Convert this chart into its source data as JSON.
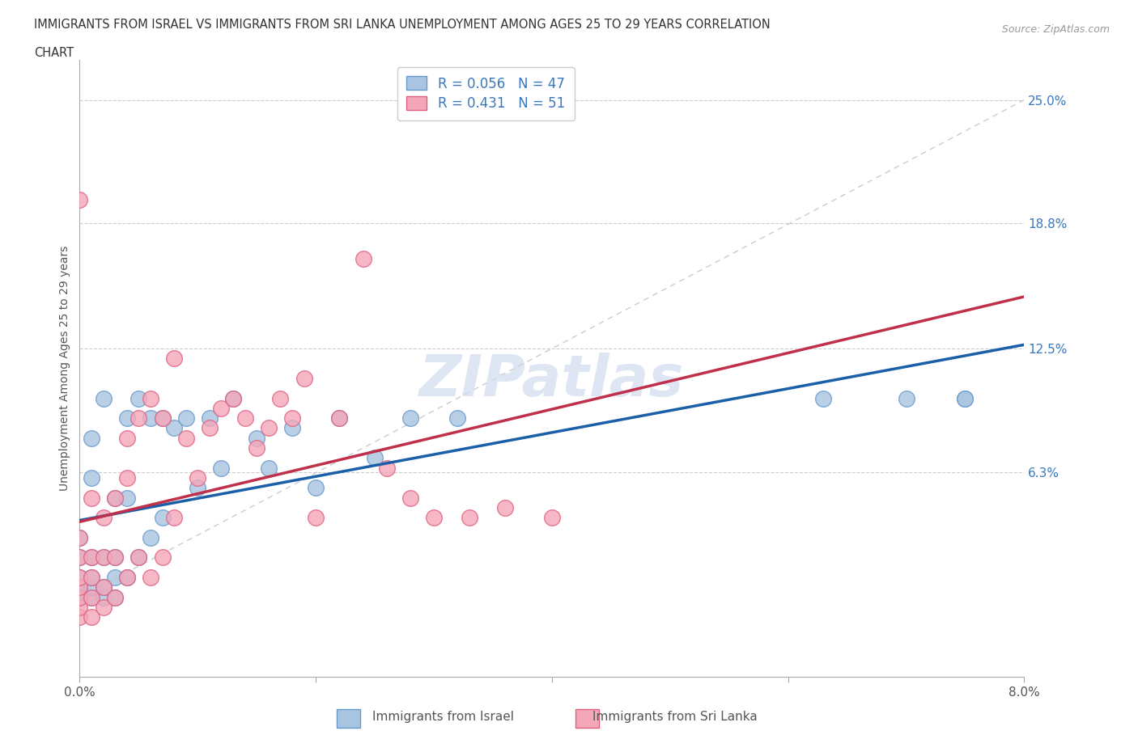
{
  "title_line1": "IMMIGRANTS FROM ISRAEL VS IMMIGRANTS FROM SRI LANKA UNEMPLOYMENT AMONG AGES 25 TO 29 YEARS CORRELATION",
  "title_line2": "CHART",
  "source": "Source: ZipAtlas.com",
  "ylabel": "Unemployment Among Ages 25 to 29 years",
  "xlim": [
    0.0,
    0.08
  ],
  "ylim": [
    -0.04,
    0.27
  ],
  "xticks": [
    0.0,
    0.02,
    0.04,
    0.06,
    0.08
  ],
  "xticklabels": [
    "0.0%",
    "",
    "",
    "",
    "8.0%"
  ],
  "ytick_positions": [
    0.063,
    0.125,
    0.188,
    0.25
  ],
  "ytick_labels": [
    "6.3%",
    "12.5%",
    "18.8%",
    "25.0%"
  ],
  "israel_color": "#a8c4e0",
  "srilanka_color": "#f4a7b9",
  "israel_edge": "#6699cc",
  "srilanka_edge": "#e06080",
  "trend_israel_color": "#1a5fa8",
  "trend_srilanka_color": "#c0304a",
  "diagonal_color": "#cccccc",
  "watermark": "ZIPatlas",
  "legend_R_israel": "R = 0.056",
  "legend_N_israel": "N = 47",
  "legend_R_srilanka": "R = 0.431",
  "legend_N_srilanka": "N = 51",
  "israel_x": [
    0.0,
    0.0,
    0.0,
    0.0,
    0.0,
    0.0,
    0.001,
    0.001,
    0.001,
    0.001,
    0.001,
    0.001,
    0.002,
    0.002,
    0.002,
    0.002,
    0.003,
    0.003,
    0.003,
    0.003,
    0.004,
    0.004,
    0.004,
    0.005,
    0.005,
    0.006,
    0.006,
    0.007,
    0.007,
    0.008,
    0.009,
    0.01,
    0.011,
    0.012,
    0.013,
    0.015,
    0.016,
    0.018,
    0.02,
    0.022,
    0.025,
    0.028,
    0.032,
    0.063,
    0.07,
    0.075,
    0.075
  ],
  "israel_y": [
    0.0,
    0.0,
    0.005,
    0.01,
    0.02,
    0.03,
    0.0,
    0.005,
    0.01,
    0.02,
    0.06,
    0.08,
    0.0,
    0.005,
    0.02,
    0.1,
    0.0,
    0.01,
    0.02,
    0.05,
    0.01,
    0.05,
    0.09,
    0.02,
    0.1,
    0.03,
    0.09,
    0.04,
    0.09,
    0.085,
    0.09,
    0.055,
    0.09,
    0.065,
    0.1,
    0.08,
    0.065,
    0.085,
    0.055,
    0.09,
    0.07,
    0.09,
    0.09,
    0.1,
    0.1,
    0.1,
    0.1
  ],
  "srilanka_x": [
    0.0,
    0.0,
    0.0,
    0.0,
    0.0,
    0.0,
    0.0,
    0.0,
    0.001,
    0.001,
    0.001,
    0.001,
    0.001,
    0.002,
    0.002,
    0.002,
    0.002,
    0.003,
    0.003,
    0.003,
    0.004,
    0.004,
    0.004,
    0.005,
    0.005,
    0.006,
    0.006,
    0.007,
    0.007,
    0.008,
    0.008,
    0.009,
    0.01,
    0.011,
    0.012,
    0.013,
    0.014,
    0.015,
    0.016,
    0.017,
    0.018,
    0.019,
    0.02,
    0.022,
    0.024,
    0.026,
    0.028,
    0.03,
    0.033,
    0.036,
    0.04
  ],
  "srilanka_y": [
    -0.01,
    -0.005,
    0.0,
    0.005,
    0.01,
    0.02,
    0.03,
    0.2,
    -0.01,
    0.0,
    0.01,
    0.02,
    0.05,
    -0.005,
    0.005,
    0.02,
    0.04,
    0.0,
    0.02,
    0.05,
    0.01,
    0.06,
    0.08,
    0.02,
    0.09,
    0.01,
    0.1,
    0.02,
    0.09,
    0.04,
    0.12,
    0.08,
    0.06,
    0.085,
    0.095,
    0.1,
    0.09,
    0.075,
    0.085,
    0.1,
    0.09,
    0.11,
    0.04,
    0.09,
    0.17,
    0.065,
    0.05,
    0.04,
    0.04,
    0.045,
    0.04
  ]
}
